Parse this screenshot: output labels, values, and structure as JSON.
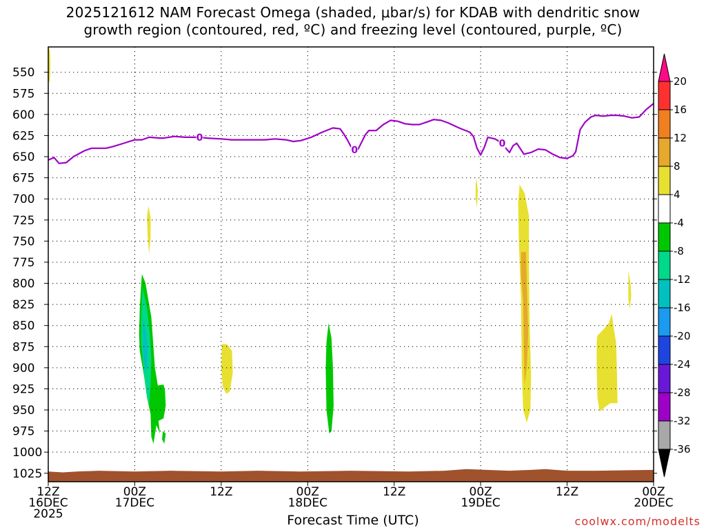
{
  "title_lines": [
    "2025121612 NAM Forecast Omega (shaded, μbar/s) for KDAB with dendritic snow",
    "growth region (contoured, red, ºC) and freezing level (contoured, purple, ºC)"
  ],
  "credit": "coolwx.com/modelts",
  "chart_data": {
    "type": "area",
    "title": "2025121612 NAM Forecast Omega (shaded, μbar/s) for KDAB with dendritic snow growth region (contoured, red, ºC) and freezing level (contoured, purple, ºC)",
    "xlabel": "Forecast Time (UTC)",
    "ylabel": "",
    "x_unit": "forecast hour from 2025-12-16 12Z",
    "xlim": [
      0,
      84
    ],
    "ylim": [
      1035,
      520
    ],
    "y_scale": "linear, inverted (pressure, hPa)",
    "grid": true,
    "x_ticks": [
      {
        "hour": 0,
        "lines": [
          "12Z",
          "16DEC",
          "2025"
        ]
      },
      {
        "hour": 12,
        "lines": [
          "00Z",
          "17DEC"
        ]
      },
      {
        "hour": 24,
        "lines": [
          "12Z"
        ]
      },
      {
        "hour": 36,
        "lines": [
          "00Z",
          "18DEC"
        ]
      },
      {
        "hour": 48,
        "lines": [
          "12Z"
        ]
      },
      {
        "hour": 60,
        "lines": [
          "00Z",
          "19DEC"
        ]
      },
      {
        "hour": 72,
        "lines": [
          "12Z"
        ]
      },
      {
        "hour": 84,
        "lines": [
          "00Z",
          "20DEC"
        ]
      }
    ],
    "y_ticks": [
      "550",
      "575",
      "600",
      "625",
      "650",
      "675",
      "700",
      "725",
      "750",
      "775",
      "800",
      "825",
      "850",
      "875",
      "900",
      "925",
      "950",
      "975",
      "1000",
      "1025"
    ],
    "colorbar": {
      "labels": [
        "20",
        "16",
        "12",
        "8",
        "4",
        "-4",
        "-8",
        "-12",
        "-16",
        "-20",
        "-24",
        "-28",
        "-32",
        "-36"
      ],
      "colors": [
        "#ff0a86",
        "#ff3030",
        "#f07f20",
        "#e6a82d",
        "#e8e030",
        "#ffffff",
        "#00c800",
        "#00d88a",
        "#00c0c0",
        "#1a9af0",
        "#1f45e0",
        "#6a18d8",
        "#9e00c8",
        "#a8a8a8",
        "#000000"
      ]
    },
    "freezing_level": {
      "label": "0",
      "color": "#a000c8",
      "label_hours": [
        21,
        42.5,
        63
      ],
      "points": [
        [
          0,
          654
        ],
        [
          0.8,
          651
        ],
        [
          1.5,
          658
        ],
        [
          2.5,
          657
        ],
        [
          3.5,
          650
        ],
        [
          5,
          643
        ],
        [
          6,
          640
        ],
        [
          8,
          640
        ],
        [
          9,
          638
        ],
        [
          10.5,
          634
        ],
        [
          12,
          630
        ],
        [
          13,
          630
        ],
        [
          14,
          627
        ],
        [
          15.5,
          628
        ],
        [
          16,
          628
        ],
        [
          17.5,
          626
        ],
        [
          19,
          627
        ],
        [
          21,
          627
        ],
        [
          22,
          628
        ],
        [
          24,
          629
        ],
        [
          25.5,
          630
        ],
        [
          27,
          630
        ],
        [
          28.5,
          630
        ],
        [
          30,
          630
        ],
        [
          31.5,
          629
        ],
        [
          33,
          630
        ],
        [
          34,
          632
        ],
        [
          35,
          631
        ],
        [
          36.5,
          627
        ],
        [
          38,
          621
        ],
        [
          39.5,
          616
        ],
        [
          40.5,
          617
        ],
        [
          41,
          623
        ],
        [
          41.5,
          630
        ],
        [
          42,
          638
        ],
        [
          42.5,
          642
        ],
        [
          43,
          641
        ],
        [
          44,
          624
        ],
        [
          44.5,
          619
        ],
        [
          45.5,
          619
        ],
        [
          46.5,
          612
        ],
        [
          47.5,
          607
        ],
        [
          48.5,
          608
        ],
        [
          49.5,
          611
        ],
        [
          50.5,
          612
        ],
        [
          51.5,
          612
        ],
        [
          52.5,
          609
        ],
        [
          53.5,
          606
        ],
        [
          54.5,
          607
        ],
        [
          55.5,
          610
        ],
        [
          57,
          616
        ],
        [
          58.5,
          621
        ],
        [
          59,
          626
        ],
        [
          59.5,
          640
        ],
        [
          60,
          648
        ],
        [
          60.5,
          639
        ],
        [
          61,
          627
        ],
        [
          62,
          629
        ],
        [
          63,
          634
        ],
        [
          63.5,
          640
        ],
        [
          64,
          645
        ],
        [
          64.5,
          637
        ],
        [
          65,
          634
        ],
        [
          66,
          647
        ],
        [
          67,
          645
        ],
        [
          68,
          641
        ],
        [
          69,
          642
        ],
        [
          70,
          647
        ],
        [
          71,
          651
        ],
        [
          72,
          652
        ],
        [
          72.8,
          649
        ],
        [
          73.2,
          644
        ],
        [
          73.8,
          618
        ],
        [
          74.5,
          609
        ],
        [
          75.3,
          603
        ],
        [
          76,
          601
        ],
        [
          77,
          602
        ],
        [
          78,
          601
        ],
        [
          79,
          601
        ],
        [
          80,
          602
        ],
        [
          81,
          604
        ],
        [
          82,
          603
        ],
        [
          83,
          594
        ],
        [
          84,
          587
        ]
      ]
    },
    "ground": {
      "color": "#a0522d",
      "points": [
        [
          0,
          1023
        ],
        [
          2,
          1024
        ],
        [
          4,
          1023
        ],
        [
          7,
          1022
        ],
        [
          12,
          1023
        ],
        [
          17,
          1022
        ],
        [
          24,
          1023
        ],
        [
          29,
          1022
        ],
        [
          35,
          1023
        ],
        [
          42,
          1022
        ],
        [
          50,
          1023
        ],
        [
          55,
          1022
        ],
        [
          58,
          1020
        ],
        [
          64,
          1022
        ],
        [
          67,
          1021
        ],
        [
          69,
          1020
        ],
        [
          72,
          1022
        ],
        [
          76,
          1022
        ],
        [
          84,
          1021
        ]
      ]
    },
    "omega_regions": [
      {
        "value": 4,
        "color": "#e8e030",
        "points": [
          [
            0.05,
            520
          ],
          [
            0.25,
            525
          ],
          [
            0.3,
            545
          ],
          [
            0.2,
            562
          ],
          [
            0.05,
            560
          ]
        ]
      },
      {
        "value": 4,
        "color": "#e8e030",
        "points": [
          [
            13.9,
            708
          ],
          [
            14.2,
            722
          ],
          [
            14.2,
            746
          ],
          [
            14.0,
            765
          ],
          [
            13.8,
            745
          ],
          [
            13.7,
            722
          ]
        ]
      },
      {
        "value": 4,
        "color": "#e8e030",
        "points": [
          [
            24.1,
            872
          ],
          [
            24.8,
            872
          ],
          [
            25.5,
            880
          ],
          [
            25.6,
            906
          ],
          [
            25.2,
            928
          ],
          [
            24.7,
            931
          ],
          [
            24.2,
            922
          ],
          [
            24.0,
            900
          ]
        ]
      },
      {
        "value": 4,
        "color": "#e8e030",
        "points": [
          [
            59.4,
            675
          ],
          [
            59.6,
            690
          ],
          [
            59.5,
            710
          ],
          [
            59.3,
            700
          ],
          [
            59.3,
            685
          ]
        ]
      },
      {
        "value": 4,
        "color": "#e8e030",
        "points": [
          [
            65.4,
            683
          ],
          [
            66.1,
            693
          ],
          [
            66.7,
            720
          ],
          [
            66.7,
            780
          ],
          [
            66.8,
            850
          ],
          [
            67.0,
            910
          ],
          [
            66.9,
            950
          ],
          [
            66.4,
            965
          ],
          [
            65.9,
            950
          ],
          [
            65.7,
            900
          ],
          [
            65.6,
            820
          ],
          [
            65.3,
            750
          ],
          [
            65.2,
            705
          ]
        ]
      },
      {
        "value": 8,
        "color": "#e6a82d",
        "points": [
          [
            65.6,
            763
          ],
          [
            66.3,
            763
          ],
          [
            66.4,
            800
          ],
          [
            66.6,
            860
          ],
          [
            66.4,
            900
          ],
          [
            66.1,
            920
          ],
          [
            66.0,
            880
          ],
          [
            65.9,
            820
          ],
          [
            65.6,
            790
          ]
        ]
      },
      {
        "value": 4,
        "color": "#e8e030",
        "points": [
          [
            76.2,
            862
          ],
          [
            77.0,
            855
          ],
          [
            77.8,
            847
          ],
          [
            78.2,
            836
          ],
          [
            78.5,
            855
          ],
          [
            78.8,
            870
          ],
          [
            78.9,
            900
          ],
          [
            79.0,
            942
          ],
          [
            78.0,
            942
          ],
          [
            77.2,
            947
          ],
          [
            76.5,
            952
          ],
          [
            76.2,
            935
          ],
          [
            76.1,
            900
          ],
          [
            76.1,
            870
          ]
        ]
      },
      {
        "value": 4,
        "color": "#e8e030",
        "points": [
          [
            80.5,
            785
          ],
          [
            80.8,
            800
          ],
          [
            80.9,
            815
          ],
          [
            80.7,
            830
          ],
          [
            80.5,
            820
          ]
        ]
      },
      {
        "value": -4,
        "color": "#00c800",
        "points": [
          [
            13.0,
            789
          ],
          [
            13.5,
            800
          ],
          [
            14.3,
            840
          ],
          [
            14.8,
            900
          ],
          [
            15.2,
            921
          ],
          [
            16.0,
            920
          ],
          [
            16.2,
            927
          ],
          [
            16.3,
            945
          ],
          [
            16.0,
            960
          ],
          [
            15.3,
            963
          ],
          [
            15.5,
            978
          ],
          [
            15.0,
            968
          ],
          [
            14.6,
            990
          ],
          [
            14.3,
            982
          ],
          [
            14.2,
            955
          ],
          [
            13.7,
            935
          ],
          [
            13.3,
            910
          ],
          [
            12.7,
            880
          ],
          [
            12.6,
            860
          ],
          [
            12.7,
            830
          ],
          [
            12.9,
            800
          ]
        ]
      },
      {
        "value": -8,
        "color": "#00d88a",
        "points": [
          [
            13.1,
            805
          ],
          [
            13.7,
            830
          ],
          [
            14.1,
            860
          ],
          [
            14.3,
            890
          ],
          [
            14.2,
            920
          ],
          [
            14.0,
            945
          ],
          [
            13.6,
            930
          ],
          [
            13.2,
            900
          ],
          [
            12.9,
            870
          ],
          [
            12.9,
            840
          ]
        ]
      },
      {
        "value": -12,
        "color": "#00c0c0",
        "points": [
          [
            13.2,
            840
          ],
          [
            13.6,
            860
          ],
          [
            13.8,
            880
          ],
          [
            13.7,
            900
          ],
          [
            13.5,
            905
          ],
          [
            13.2,
            890
          ],
          [
            13.1,
            860
          ]
        ]
      },
      {
        "value": -4,
        "color": "#00c800",
        "points": [
          [
            15.9,
            975
          ],
          [
            16.3,
            978
          ],
          [
            16.1,
            990
          ],
          [
            15.8,
            985
          ]
        ]
      },
      {
        "value": -4,
        "color": "#00c800",
        "points": [
          [
            38.9,
            847
          ],
          [
            39.3,
            865
          ],
          [
            39.5,
            900
          ],
          [
            39.6,
            945
          ],
          [
            39.3,
            975
          ],
          [
            39.0,
            978
          ],
          [
            38.6,
            950
          ],
          [
            38.5,
            900
          ],
          [
            38.6,
            870
          ]
        ]
      }
    ]
  }
}
